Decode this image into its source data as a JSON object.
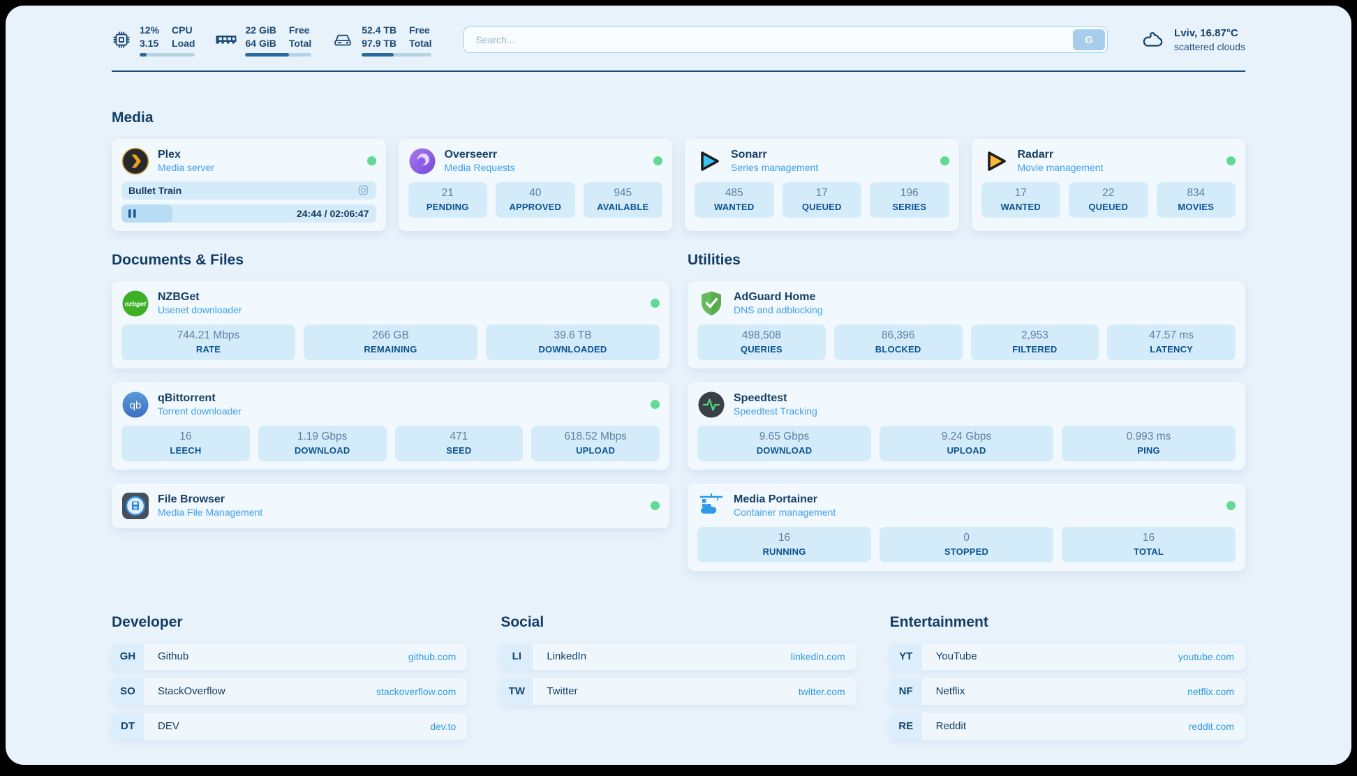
{
  "colors": {
    "page_bg": "#e8f2fb",
    "card_bg": "#f1f8fe",
    "stat_bg": "#d4ebfa",
    "accent_navy": "#173f63",
    "accent_blue": "#41a0ea",
    "link_blue": "#2e9ae4",
    "status_online": "#62d995",
    "progress_fill": "#2c6b9e"
  },
  "topbar": {
    "monitors": [
      {
        "icon": "cpu-icon",
        "value1": "12%",
        "value2": "3.15",
        "label1": "CPU",
        "label2": "Load",
        "progress": 12
      },
      {
        "icon": "ram-icon",
        "value1": "22 GiB",
        "value2": "64 GiB",
        "label1": "Free",
        "label2": "Total",
        "progress": 66
      },
      {
        "icon": "disk-icon",
        "value1": "52.4 TB",
        "value2": "97.9 TB",
        "label1": "Free",
        "label2": "Total",
        "progress": 46
      }
    ],
    "search": {
      "placeholder": "Search...",
      "button_label": "G"
    },
    "weather": {
      "icon": "cloud-icon",
      "location": "Lviv, 16.87°C",
      "condition": "scattered clouds"
    }
  },
  "sections": {
    "media": {
      "title": "Media",
      "apps": {
        "plex": {
          "name": "Plex",
          "subtitle": "Media server",
          "status": "online",
          "now_playing": {
            "title": "Bullet Train",
            "time": "24:44 / 02:06:47",
            "progress": 20
          }
        },
        "overseerr": {
          "name": "Overseerr",
          "subtitle": "Media Requests",
          "status": "online",
          "stats": [
            {
              "value": "21",
              "label": "PENDING"
            },
            {
              "value": "40",
              "label": "APPROVED"
            },
            {
              "value": "945",
              "label": "AVAILABLE"
            }
          ]
        },
        "sonarr": {
          "name": "Sonarr",
          "subtitle": "Series management",
          "status": "online",
          "stats": [
            {
              "value": "485",
              "label": "WANTED"
            },
            {
              "value": "17",
              "label": "QUEUED"
            },
            {
              "value": "196",
              "label": "SERIES"
            }
          ]
        },
        "radarr": {
          "name": "Radarr",
          "subtitle": "Movie management",
          "status": "online",
          "stats": [
            {
              "value": "17",
              "label": "WANTED"
            },
            {
              "value": "22",
              "label": "QUEUED"
            },
            {
              "value": "834",
              "label": "MOVIES"
            }
          ]
        }
      }
    },
    "documents": {
      "title": "Documents & Files",
      "apps": {
        "nzbget": {
          "name": "NZBGet",
          "subtitle": "Usenet downloader",
          "status": "online",
          "stats": [
            {
              "value": "744.21 Mbps",
              "label": "RATE"
            },
            {
              "value": "266 GB",
              "label": "REMAINING"
            },
            {
              "value": "39.6 TB",
              "label": "DOWNLOADED"
            }
          ]
        },
        "qbittorrent": {
          "name": "qBittorrent",
          "subtitle": "Torrent downloader",
          "status": "online",
          "stats": [
            {
              "value": "16",
              "label": "LEECH"
            },
            {
              "value": "1.19 Gbps",
              "label": "DOWNLOAD"
            },
            {
              "value": "471",
              "label": "SEED"
            },
            {
              "value": "618.52 Mbps",
              "label": "UPLOAD"
            }
          ]
        },
        "filebrowser": {
          "name": "File Browser",
          "subtitle": "Media File Management",
          "status": "online"
        }
      }
    },
    "utilities": {
      "title": "Utilities",
      "apps": {
        "adguard": {
          "name": "AdGuard Home",
          "subtitle": "DNS and adblocking",
          "stats": [
            {
              "value": "498,508",
              "label": "QUERIES"
            },
            {
              "value": "86,396",
              "label": "BLOCKED"
            },
            {
              "value": "2,953",
              "label": "FILTERED"
            },
            {
              "value": "47.57 ms",
              "label": "LATENCY"
            }
          ]
        },
        "speedtest": {
          "name": "Speedtest",
          "subtitle": "Speedtest Tracking",
          "stats": [
            {
              "value": "9.65 Gbps",
              "label": "DOWNLOAD"
            },
            {
              "value": "9.24 Gbps",
              "label": "UPLOAD"
            },
            {
              "value": "0.993 ms",
              "label": "PING"
            }
          ]
        },
        "portainer": {
          "name": "Media Portainer",
          "subtitle": "Container management",
          "status": "online",
          "stats": [
            {
              "value": "16",
              "label": "RUNNING"
            },
            {
              "value": "0",
              "label": "STOPPED"
            },
            {
              "value": "16",
              "label": "TOTAL"
            }
          ]
        }
      }
    },
    "links": [
      {
        "title": "Developer",
        "items": [
          {
            "abbr": "GH",
            "name": "Github",
            "url": "github.com"
          },
          {
            "abbr": "SO",
            "name": "StackOverflow",
            "url": "stackoverflow.com"
          },
          {
            "abbr": "DT",
            "name": "DEV",
            "url": "dev.to"
          }
        ]
      },
      {
        "title": "Social",
        "items": [
          {
            "abbr": "LI",
            "name": "LinkedIn",
            "url": "linkedin.com"
          },
          {
            "abbr": "TW",
            "name": "Twitter",
            "url": "twitter.com"
          }
        ]
      },
      {
        "title": "Entertainment",
        "items": [
          {
            "abbr": "YT",
            "name": "YouTube",
            "url": "youtube.com"
          },
          {
            "abbr": "NF",
            "name": "Netflix",
            "url": "netflix.com"
          },
          {
            "abbr": "RE",
            "name": "Reddit",
            "url": "reddit.com"
          }
        ]
      }
    ]
  }
}
